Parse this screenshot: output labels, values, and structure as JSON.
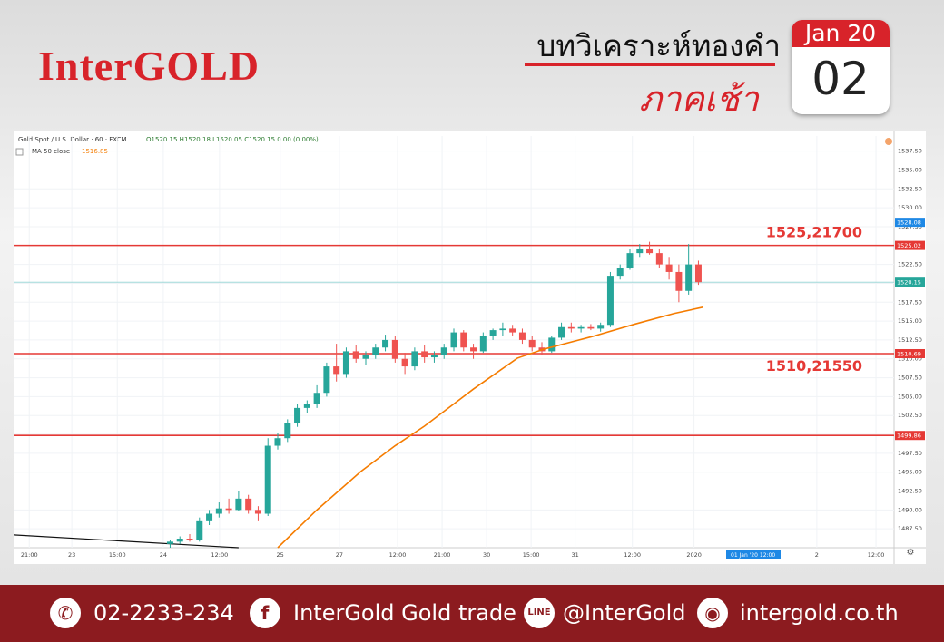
{
  "header": {
    "brand": "InterGOLD",
    "title": "บทวิเคราะห์ทองคำ",
    "subtitle": "ภาคเช้า",
    "calendar_month": "Jan 20",
    "calendar_day": "02"
  },
  "footer": {
    "phone": "02-2233-234",
    "facebook": "InterGold Gold trade",
    "line": "@InterGold",
    "website": "intergold.co.th"
  },
  "chart_data": {
    "type": "candlestick",
    "title": "Gold Spot / U.S. Dollar · 60 · FXCM",
    "ohlc_info": "O1520.15 H1520.18 L1520.05 C1520.15 0.00 (0.00%)",
    "ma_label": "MA 50 close",
    "ma_value": "1516.85",
    "up_color": "#26a69a",
    "down_color": "#ef5350",
    "ma_color": "#f57c00",
    "xlim": [
      0,
      180
    ],
    "ylim": [
      1485,
      1539.5
    ],
    "xticks": [
      {
        "value": 3.2,
        "label": "21:00"
      },
      {
        "value": 11.9,
        "label": "23"
      },
      {
        "value": 21.2,
        "label": "15:00"
      },
      {
        "value": 30.6,
        "label": "24"
      },
      {
        "value": 42.1,
        "label": "12:00"
      },
      {
        "value": 54.5,
        "label": "25"
      },
      {
        "value": 66.6,
        "label": "27"
      },
      {
        "value": 78.5,
        "label": "12:00"
      },
      {
        "value": 87.6,
        "label": "21:00"
      },
      {
        "value": 96.7,
        "label": "30"
      },
      {
        "value": 105.8,
        "label": "15:00"
      },
      {
        "value": 114.8,
        "label": "31"
      },
      {
        "value": 126.5,
        "label": "12:00"
      },
      {
        "value": 139.1,
        "label": "2020"
      },
      {
        "value": 164.2,
        "label": "2"
      },
      {
        "value": 176.3,
        "label": "12:00"
      }
    ],
    "cursor_label": "01 Jan '20   12:00",
    "yticks": [
      {
        "value": 1487.5,
        "label": "1487.50"
      },
      {
        "value": 1490,
        "label": "1490.00"
      },
      {
        "value": 1492.5,
        "label": "1492.50"
      },
      {
        "value": 1495,
        "label": "1495.00"
      },
      {
        "value": 1497.5,
        "label": "1497.50"
      },
      {
        "value": 1500,
        "label": "1500.00"
      },
      {
        "value": 1502.5,
        "label": "1502.50"
      },
      {
        "value": 1505,
        "label": "1505.00"
      },
      {
        "value": 1507.5,
        "label": "1507.50"
      },
      {
        "value": 1510,
        "label": "1510.00"
      },
      {
        "value": 1512.5,
        "label": "1512.50"
      },
      {
        "value": 1515,
        "label": "1515.00"
      },
      {
        "value": 1517.5,
        "label": "1517.50"
      },
      {
        "value": 1520,
        "label": "1520.00"
      },
      {
        "value": 1522.5,
        "label": "1522.50"
      },
      {
        "value": 1525,
        "label": "1525.00"
      },
      {
        "value": 1527.5,
        "label": "1527.50"
      },
      {
        "value": 1530,
        "label": "1530.00"
      },
      {
        "value": 1532.5,
        "label": "1532.50"
      },
      {
        "value": 1535,
        "label": "1535.00"
      },
      {
        "value": 1537.5,
        "label": "1537.50"
      }
    ],
    "x": [
      32,
      34,
      36,
      38,
      40,
      42,
      44,
      46,
      48,
      50,
      52,
      54,
      56,
      58,
      60,
      62,
      64,
      66,
      68,
      70,
      72,
      74,
      76,
      78,
      80,
      82,
      84,
      86,
      88,
      90,
      92,
      94,
      96,
      98,
      100,
      102,
      104,
      106,
      108,
      110,
      112,
      114,
      116,
      118,
      120,
      122,
      124,
      126,
      128,
      130,
      132,
      134,
      136,
      138,
      140
    ],
    "open": [
      1485.5,
      1485.8,
      1486.2,
      1486,
      1488.5,
      1489.5,
      1490.2,
      1490,
      1491.5,
      1490,
      1489.5,
      1498.5,
      1499.5,
      1501.5,
      1503.5,
      1504,
      1505.5,
      1509,
      1508,
      1511,
      1510,
      1510.5,
      1511.5,
      1512.5,
      1510,
      1509,
      1511,
      1510.2,
      1510.5,
      1511.5,
      1513.5,
      1511.5,
      1511,
      1513,
      1513.8,
      1514,
      1513.5,
      1512.5,
      1511.5,
      1511,
      1512.8,
      1514.2,
      1514,
      1514.2,
      1514,
      1514.5,
      1521,
      1522,
      1524,
      1524.5,
      1524,
      1522.5,
      1521.5,
      1519,
      1522.5
    ],
    "high": [
      1486,
      1486.5,
      1486.8,
      1489,
      1490,
      1491,
      1491.5,
      1492.5,
      1492,
      1490.5,
      1499.5,
      1500.2,
      1502,
      1504,
      1504.5,
      1506.5,
      1509.5,
      1512,
      1511.5,
      1511.8,
      1511,
      1512,
      1513.2,
      1513,
      1510.8,
      1511.5,
      1511.8,
      1511,
      1512,
      1514,
      1513.8,
      1512,
      1513.5,
      1514,
      1514.8,
      1514.5,
      1514,
      1513,
      1512.2,
      1513,
      1514.8,
      1514.8,
      1514.5,
      1514.6,
      1514.8,
      1521.5,
      1522.5,
      1524.5,
      1525.2,
      1525.5,
      1524.5,
      1523.5,
      1522.5,
      1525.2,
      1523
    ],
    "low": [
      1485,
      1485.5,
      1485.8,
      1485.8,
      1488,
      1489,
      1489.5,
      1489.8,
      1489.5,
      1488.5,
      1489.2,
      1498,
      1499,
      1501,
      1502.8,
      1503.5,
      1505,
      1507,
      1507.5,
      1509.5,
      1509.2,
      1510,
      1511,
      1509.5,
      1508,
      1508.5,
      1509.5,
      1509.5,
      1510,
      1511,
      1511,
      1510,
      1510.8,
      1512.5,
      1513,
      1513,
      1512,
      1511,
      1510.5,
      1510.8,
      1512.5,
      1513.5,
      1513.5,
      1513.8,
      1513.6,
      1514.2,
      1520.5,
      1521.8,
      1523.5,
      1523.8,
      1522,
      1520.5,
      1517.5,
      1518.5,
      1519.8
    ],
    "close": [
      1485.8,
      1486.2,
      1486,
      1488.5,
      1489.5,
      1490.2,
      1490,
      1491.5,
      1490,
      1489.5,
      1498.5,
      1499.5,
      1501.5,
      1503.5,
      1504,
      1505.5,
      1509,
      1508,
      1511,
      1510,
      1510.5,
      1511.5,
      1512.5,
      1510,
      1509,
      1511,
      1510.2,
      1510.5,
      1511.5,
      1513.5,
      1511.5,
      1511,
      1513,
      1513.8,
      1514,
      1513.5,
      1512.5,
      1511.5,
      1511,
      1512.8,
      1514.2,
      1514,
      1514.2,
      1514,
      1514.5,
      1521,
      1522,
      1524,
      1524.5,
      1524,
      1522.5,
      1521.5,
      1519,
      1522.5,
      1520.15
    ],
    "ma": {
      "x": [
        54,
        62,
        71,
        78,
        84,
        94,
        103,
        108.5,
        118,
        127,
        135,
        141
      ],
      "values": [
        1485,
        1490,
        1495.1,
        1498.5,
        1501.1,
        1506,
        1510.1,
        1511.3,
        1512.9,
        1514.6,
        1516,
        1516.85
      ]
    },
    "trendline": {
      "x": [
        0,
        46
      ],
      "values": [
        1486.7,
        1485
      ]
    },
    "levels": [
      {
        "value": 1525.02,
        "color": "#e53935"
      },
      {
        "value": 1510.69,
        "color": "#e53935"
      },
      {
        "value": 1499.86,
        "color": "#e53935"
      }
    ],
    "price_line": {
      "value": 1520.15,
      "color": "#9fd8d8"
    },
    "blue_tag": {
      "value": 1528.08,
      "color": "#1e88e5"
    },
    "annotations": [
      {
        "text": "1525,21700",
        "at": 1525.02
      },
      {
        "text": "1510,21550",
        "at": 1510.69
      }
    ]
  }
}
